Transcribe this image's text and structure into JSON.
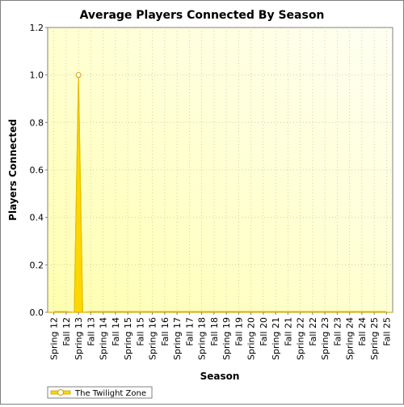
{
  "chart_data": {
    "type": "area",
    "title": "Average Players Connected By Season",
    "xlabel": "Season",
    "ylabel": "Players Connected",
    "ylim": [
      0,
      1.2
    ],
    "yticks": [
      "0.0",
      "0.2",
      "0.4",
      "0.6",
      "0.8",
      "1.0",
      "1.2"
    ],
    "ytick_values": [
      0,
      0.2,
      0.4,
      0.6,
      0.8,
      1.0,
      1.2
    ],
    "categories": [
      "Spring 12",
      "Fall 12",
      "Spring 13",
      "Fall 13",
      "Spring 14",
      "Fall 14",
      "Spring 15",
      "Fall 15",
      "Spring 16",
      "Fall 16",
      "Spring 17",
      "Fall 17",
      "Spring 18",
      "Fall 18",
      "Spring 19",
      "Fall 19",
      "Spring 20",
      "Fall 20",
      "Spring 21",
      "Fall 21",
      "Spring 22",
      "Fall 22",
      "Spring 23",
      "Fall 23",
      "Spring 24",
      "Fall 24",
      "Spring 25",
      "Fall 25"
    ],
    "series": [
      {
        "name": "The Twilight Zone",
        "color": "#FFD700",
        "values": [
          0,
          0,
          1.0,
          0,
          0,
          0,
          0,
          0,
          0,
          0,
          0,
          0,
          0,
          0,
          0,
          0,
          0,
          0,
          0,
          0,
          0,
          0,
          0,
          0,
          0,
          0,
          0,
          0
        ]
      }
    ],
    "grid": true,
    "legend": "bottom-left",
    "plot_background": "#FFFFE0"
  }
}
